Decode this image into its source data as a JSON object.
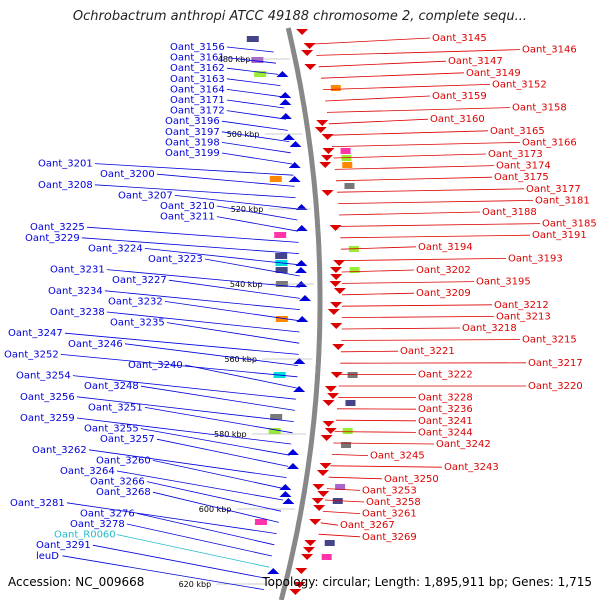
{
  "title": "Ochrobactrum anthropi ATCC 49188 chromosome 2, complete sequ...",
  "accession": "Accession: NC_009668",
  "summary": "Topology: circular; Length: 1,895,911 bp; Genes: 1,715",
  "colors": {
    "plus_strand": "#0000dd",
    "minus_strand": "#dd0000",
    "rna": "#22bbcc",
    "backbone": "#888888",
    "marker": "#22aa22"
  },
  "ticks": [
    "480 kbp",
    "500 kbp",
    "520 kbp",
    "540 kbp",
    "560 kbp",
    "580 kbp",
    "600 kbp",
    "620 kbp"
  ],
  "left_labels": [
    {
      "text": "Oant_3156",
      "type": "gene"
    },
    {
      "text": "Oant_3161",
      "type": "gene"
    },
    {
      "text": "Oant_3162",
      "type": "gene"
    },
    {
      "text": "Oant_3163",
      "type": "gene"
    },
    {
      "text": "Oant_3164",
      "type": "gene"
    },
    {
      "text": "Oant_3171",
      "type": "gene"
    },
    {
      "text": "Oant_3172",
      "type": "gene"
    },
    {
      "text": "Oant_3196",
      "type": "gene"
    },
    {
      "text": "Oant_3197",
      "type": "gene"
    },
    {
      "text": "Oant_3198",
      "type": "gene"
    },
    {
      "text": "Oant_3199",
      "type": "gene"
    },
    {
      "text": "Oant_3201",
      "type": "gene"
    },
    {
      "text": "Oant_3200",
      "type": "gene"
    },
    {
      "text": "Oant_3208",
      "type": "gene"
    },
    {
      "text": "Oant_3207",
      "type": "gene"
    },
    {
      "text": "Oant_3210",
      "type": "gene"
    },
    {
      "text": "Oant_3211",
      "type": "gene"
    },
    {
      "text": "Oant_3225",
      "type": "gene"
    },
    {
      "text": "Oant_3229",
      "type": "gene"
    },
    {
      "text": "Oant_3224",
      "type": "gene"
    },
    {
      "text": "Oant_3223",
      "type": "gene"
    },
    {
      "text": "Oant_3231",
      "type": "gene"
    },
    {
      "text": "Oant_3227",
      "type": "gene"
    },
    {
      "text": "Oant_3234",
      "type": "gene"
    },
    {
      "text": "Oant_3232",
      "type": "gene"
    },
    {
      "text": "Oant_3238",
      "type": "gene"
    },
    {
      "text": "Oant_3235",
      "type": "gene"
    },
    {
      "text": "Oant_3247",
      "type": "gene"
    },
    {
      "text": "Oant_3246",
      "type": "gene"
    },
    {
      "text": "Oant_3252",
      "type": "gene"
    },
    {
      "text": "Oant_3240",
      "type": "gene"
    },
    {
      "text": "Oant_3254",
      "type": "gene"
    },
    {
      "text": "Oant_3248",
      "type": "gene"
    },
    {
      "text": "Oant_3256",
      "type": "gene"
    },
    {
      "text": "Oant_3251",
      "type": "gene"
    },
    {
      "text": "Oant_3259",
      "type": "gene"
    },
    {
      "text": "Oant_3255",
      "type": "gene"
    },
    {
      "text": "Oant_3257",
      "type": "gene"
    },
    {
      "text": "Oant_3262",
      "type": "gene"
    },
    {
      "text": "Oant_3260",
      "type": "gene"
    },
    {
      "text": "Oant_3264",
      "type": "gene"
    },
    {
      "text": "Oant_3266",
      "type": "gene"
    },
    {
      "text": "Oant_3268",
      "type": "gene"
    },
    {
      "text": "Oant_3281",
      "type": "gene"
    },
    {
      "text": "Oant_3276",
      "type": "gene"
    },
    {
      "text": "Oant_3278",
      "type": "gene"
    },
    {
      "text": "Oant_R0060",
      "type": "rna"
    },
    {
      "text": "Oant_3291",
      "type": "gene"
    },
    {
      "text": "leuD",
      "type": "gene"
    }
  ],
  "right_labels": [
    "Oant_3145",
    "Oant_3146",
    "Oant_3147",
    "Oant_3149",
    "Oant_3152",
    "Oant_3159",
    "Oant_3158",
    "Oant_3160",
    "Oant_3165",
    "Oant_3166",
    "Oant_3173",
    "Oant_3174",
    "Oant_3175",
    "Oant_3177",
    "Oant_3181",
    "Oant_3188",
    "Oant_3185",
    "Oant_3191",
    "Oant_3194",
    "Oant_3193",
    "Oant_3202",
    "Oant_3195",
    "Oant_3209",
    "Oant_3212",
    "Oant_3213",
    "Oant_3218",
    "Oant_3215",
    "Oant_3221",
    "Oant_3217",
    "Oant_3222",
    "Oant_3220",
    "Oant_3228",
    "Oant_3236",
    "Oant_3241",
    "Oant_3244",
    "Oant_3242",
    "Oant_3245",
    "Oant_3243",
    "Oant_3250",
    "Oant_3253",
    "Oant_3258",
    "Oant_3261",
    "Oant_3267",
    "Oant_3269"
  ]
}
